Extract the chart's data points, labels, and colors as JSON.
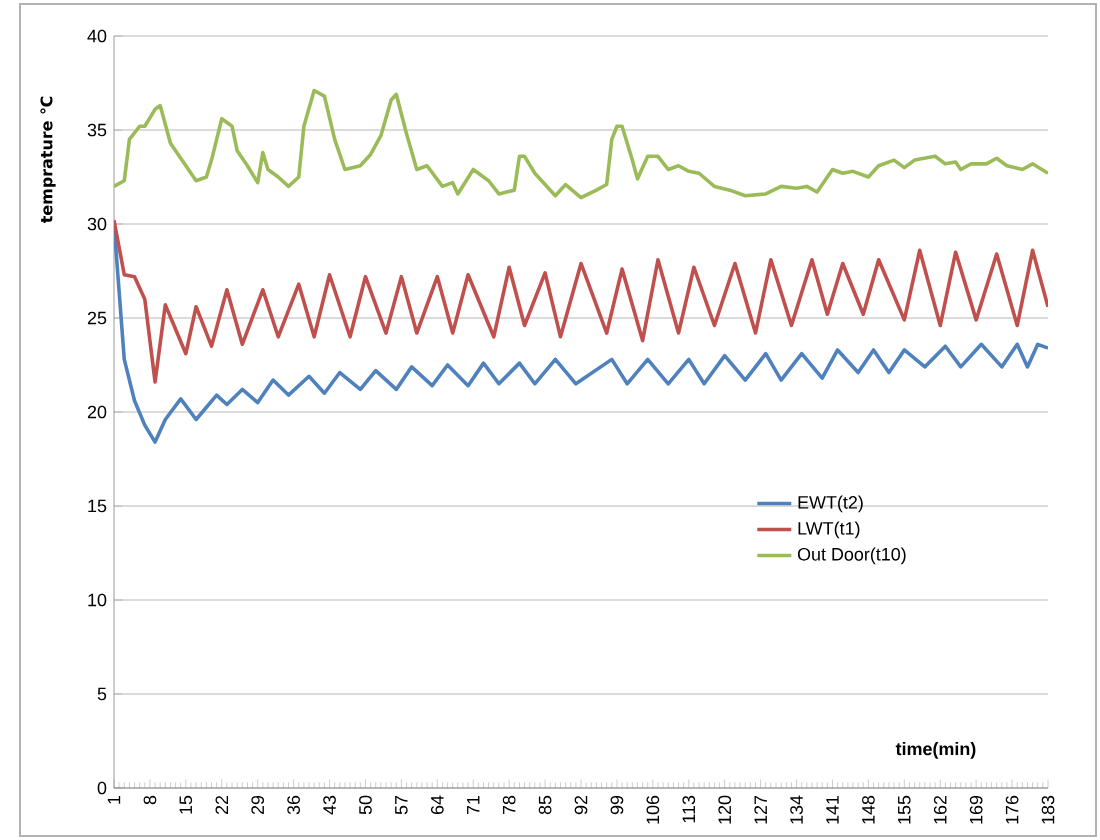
{
  "chart_data": {
    "type": "line",
    "xlabel": "time(min)",
    "ylabel": "temprature ℃",
    "xlim": [
      1,
      183
    ],
    "xticks": [
      1,
      8,
      15,
      22,
      29,
      36,
      43,
      50,
      57,
      64,
      71,
      78,
      85,
      92,
      99,
      106,
      113,
      120,
      127,
      134,
      141,
      148,
      155,
      162,
      169,
      176,
      183
    ],
    "ylim": [
      0,
      40
    ],
    "yticks": [
      0,
      5,
      10,
      15,
      20,
      25,
      30,
      35,
      40
    ],
    "grid": "y",
    "legend": "right",
    "marker": "none",
    "line_style": "solid",
    "series": [
      {
        "name": "EWT(t2)",
        "color": "#4f81bd",
        "x": [
          1,
          3,
          5,
          7,
          9,
          11,
          14,
          17,
          21,
          23,
          26,
          29,
          32,
          35,
          39,
          42,
          45,
          49,
          52,
          56,
          59,
          63,
          66,
          70,
          73,
          76,
          80,
          83,
          87,
          91,
          98,
          101,
          105,
          109,
          113,
          116,
          120,
          124,
          128,
          131,
          135,
          139,
          142,
          146,
          149,
          152,
          155,
          159,
          163,
          166,
          170,
          174,
          177,
          179,
          181,
          183
        ],
        "values": [
          30.0,
          22.8,
          20.6,
          19.3,
          18.4,
          19.6,
          20.7,
          19.6,
          20.9,
          20.4,
          21.2,
          20.5,
          21.7,
          20.9,
          21.9,
          21.0,
          22.1,
          21.2,
          22.2,
          21.2,
          22.4,
          21.4,
          22.5,
          21.4,
          22.6,
          21.5,
          22.6,
          21.5,
          22.8,
          21.5,
          22.8,
          21.5,
          22.8,
          21.5,
          22.8,
          21.5,
          23.0,
          21.7,
          23.1,
          21.7,
          23.1,
          21.8,
          23.3,
          22.1,
          23.3,
          22.1,
          23.3,
          22.4,
          23.5,
          22.4,
          23.6,
          22.4,
          23.6,
          22.4,
          23.6,
          23.4
        ]
      },
      {
        "name": "LWT(t1)",
        "color": "#c0504d",
        "x": [
          1,
          3,
          5,
          7,
          9,
          11,
          13,
          15,
          17,
          20,
          23,
          26,
          30,
          33,
          37,
          40,
          43,
          47,
          50,
          54,
          57,
          60,
          64,
          67,
          70,
          75,
          78,
          81,
          85,
          88,
          92,
          97,
          100,
          104,
          107,
          111,
          114,
          118,
          122,
          126,
          129,
          133,
          137,
          140,
          143,
          147,
          150,
          155,
          158,
          162,
          165,
          169,
          173,
          177,
          180,
          183
        ],
        "values": [
          30.2,
          27.3,
          27.2,
          26.0,
          21.6,
          25.7,
          24.4,
          23.1,
          25.6,
          23.5,
          26.5,
          23.6,
          26.5,
          24.0,
          26.8,
          24.0,
          27.3,
          24.0,
          27.2,
          24.2,
          27.2,
          24.2,
          27.2,
          24.2,
          27.3,
          24.0,
          27.7,
          24.6,
          27.4,
          24.0,
          27.9,
          24.2,
          27.6,
          23.8,
          28.1,
          24.2,
          27.7,
          24.6,
          27.9,
          24.2,
          28.1,
          24.6,
          28.1,
          25.2,
          27.9,
          25.2,
          28.1,
          24.9,
          28.6,
          24.6,
          28.5,
          24.9,
          28.4,
          24.6,
          28.6,
          25.6
        ]
      },
      {
        "name": "Out Door(t10)",
        "color": "#9bbb59",
        "x": [
          1,
          3,
          4,
          6,
          7,
          9,
          10,
          12,
          15,
          17,
          19,
          20,
          22,
          24,
          25,
          27,
          29,
          30,
          31,
          33,
          35,
          37,
          38,
          40,
          42,
          44,
          46,
          49,
          51,
          53,
          55,
          56,
          58,
          60,
          62,
          65,
          67,
          68,
          71,
          74,
          76,
          79,
          80,
          81,
          83,
          87,
          89,
          92,
          95,
          97,
          98,
          99,
          100,
          102,
          103,
          105,
          107,
          109,
          111,
          113,
          115,
          118,
          121,
          124,
          128,
          131,
          134,
          136,
          138,
          141,
          143,
          145,
          148,
          150,
          153,
          155,
          157,
          161,
          163,
          165,
          166,
          168,
          171,
          173,
          175,
          178,
          180,
          183
        ],
        "values": [
          32.0,
          32.3,
          34.5,
          35.2,
          35.2,
          36.1,
          36.3,
          34.3,
          33.1,
          32.3,
          32.5,
          33.4,
          35.6,
          35.2,
          33.9,
          33.1,
          32.2,
          33.8,
          32.9,
          32.5,
          32.0,
          32.5,
          35.2,
          37.1,
          36.8,
          34.5,
          32.9,
          33.1,
          33.7,
          34.7,
          36.6,
          36.9,
          34.8,
          32.9,
          33.1,
          32.0,
          32.2,
          31.6,
          32.9,
          32.3,
          31.6,
          31.8,
          33.6,
          33.6,
          32.7,
          31.5,
          32.1,
          31.4,
          31.8,
          32.1,
          34.5,
          35.2,
          35.2,
          33.4,
          32.4,
          33.6,
          33.6,
          32.9,
          33.1,
          32.8,
          32.7,
          32.0,
          31.8,
          31.5,
          31.6,
          32.0,
          31.9,
          32.0,
          31.7,
          32.9,
          32.7,
          32.8,
          32.5,
          33.1,
          33.4,
          33.0,
          33.4,
          33.6,
          33.2,
          33.3,
          32.9,
          33.2,
          33.2,
          33.5,
          33.1,
          32.9,
          33.2,
          32.7
        ]
      }
    ]
  }
}
